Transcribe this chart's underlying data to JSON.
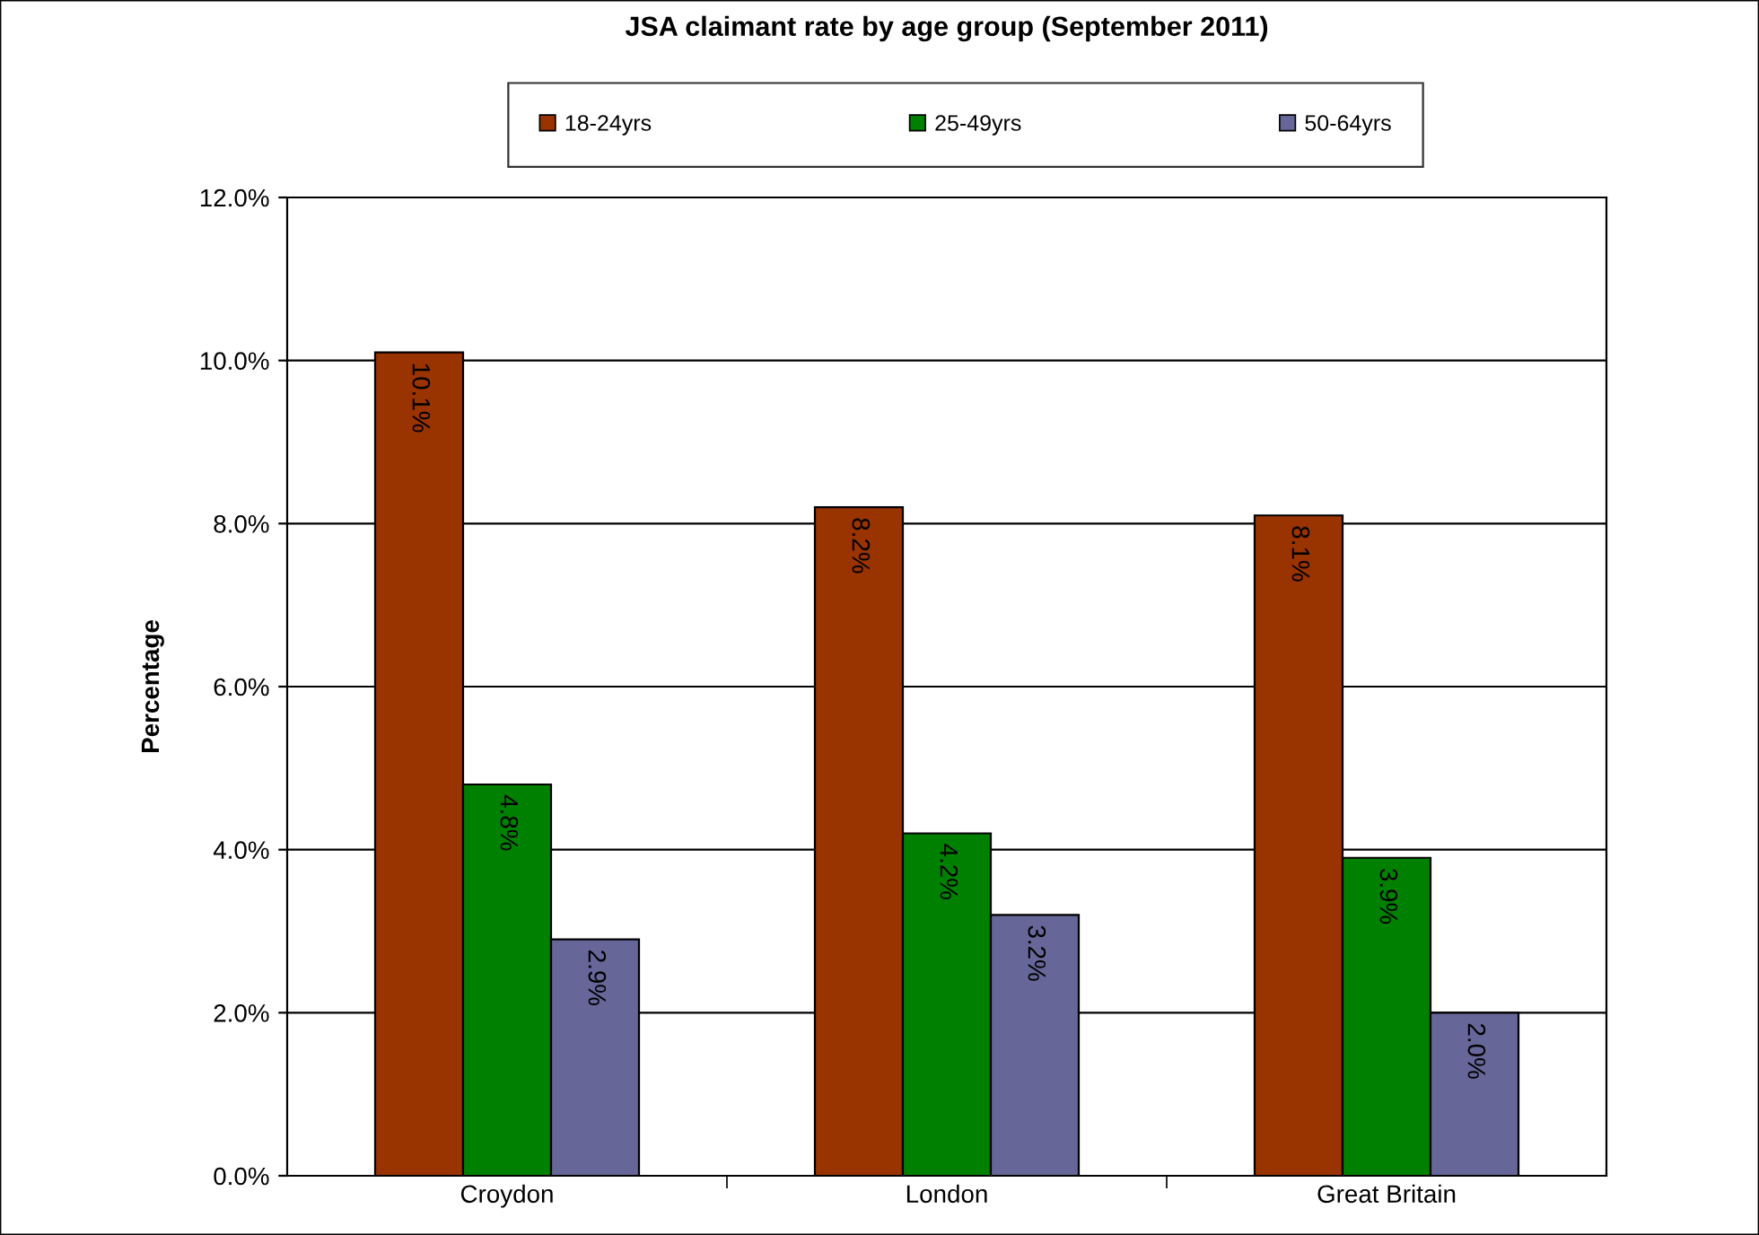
{
  "chart_data": {
    "type": "bar",
    "title": "JSA claimant rate by age group (September 2011)",
    "ylabel": "Percentage",
    "categories": [
      "Croydon",
      "London",
      "Great Britain"
    ],
    "series": [
      {
        "name": "18-24yrs",
        "color": "#993300",
        "values": [
          10.1,
          8.2,
          8.1
        ],
        "value_labels": [
          "10.1%",
          "8.2%",
          "8.1%"
        ]
      },
      {
        "name": "25-49yrs",
        "color": "#008000",
        "values": [
          4.8,
          4.2,
          3.9
        ],
        "value_labels": [
          "4.8%",
          "4.2%",
          "3.9%"
        ]
      },
      {
        "name": "50-64yrs",
        "color": "#666699",
        "values": [
          2.9,
          3.2,
          2.0
        ],
        "value_labels": [
          "2.9%",
          "3.2%",
          "2.0%"
        ]
      }
    ],
    "ylim": [
      0,
      12
    ],
    "yticks": [
      {
        "value": 0,
        "label": "0.0%"
      },
      {
        "value": 2,
        "label": "2.0%"
      },
      {
        "value": 4,
        "label": "4.0%"
      },
      {
        "value": 6,
        "label": "6.0%"
      },
      {
        "value": 8,
        "label": "8.0%"
      },
      {
        "value": 10,
        "label": "10.0%"
      },
      {
        "value": 12,
        "label": "12.0%"
      }
    ],
    "grid": "y",
    "legend": "top"
  }
}
